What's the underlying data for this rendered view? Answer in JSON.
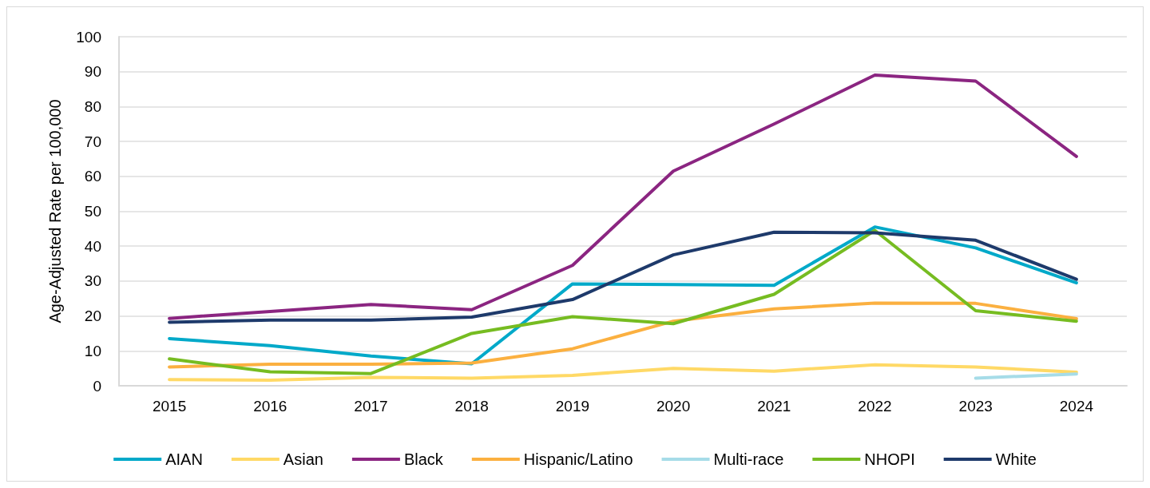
{
  "chart_data": {
    "type": "line",
    "ylabel": "Age-Adjusted Rate per 100,000",
    "categories": [
      "2015",
      "2016",
      "2017",
      "2018",
      "2019",
      "2020",
      "2021",
      "2022",
      "2023",
      "2024"
    ],
    "ylim": [
      0,
      100
    ],
    "yticks": [
      0,
      10,
      20,
      30,
      40,
      50,
      60,
      70,
      80,
      90,
      100
    ],
    "grid": "y",
    "legend": "bottom",
    "marker": "none",
    "line_style": "solid",
    "series": [
      {
        "name": "AIAN",
        "color": "#00a9c9",
        "values": [
          13.5,
          11.5,
          8.5,
          6.3,
          29.2,
          29.0,
          28.8,
          45.5,
          39.5,
          29.5
        ]
      },
      {
        "name": "Asian",
        "color": "#ffd966",
        "values": [
          1.8,
          1.6,
          2.4,
          2.2,
          3.0,
          5.0,
          4.2,
          6.0,
          5.4,
          3.9
        ]
      },
      {
        "name": "Black",
        "color": "#8b2581",
        "values": [
          19.3,
          21.3,
          23.3,
          21.8,
          34.5,
          61.5,
          75,
          89,
          87.3,
          65.7
        ]
      },
      {
        "name": "Hispanic/Latino",
        "color": "#fbb040",
        "values": [
          5.4,
          6.2,
          6.2,
          6.5,
          10.6,
          18.5,
          22,
          23.7,
          23.6,
          19.2
        ]
      },
      {
        "name": "Multi-race",
        "color": "#a6dce8",
        "values": [
          null,
          null,
          null,
          null,
          null,
          null,
          null,
          null,
          2.2,
          3.4
        ]
      },
      {
        "name": "NHOPI",
        "color": "#76bc21",
        "values": [
          7.7,
          4,
          3.5,
          15,
          19.8,
          17.8,
          26.2,
          44.5,
          21.5,
          18.5
        ]
      },
      {
        "name": "White",
        "color": "#1e3a6b",
        "values": [
          18.2,
          18.8,
          18.8,
          19.7,
          24.7,
          37.5,
          44,
          43.8,
          41.7,
          30.5
        ]
      }
    ]
  }
}
